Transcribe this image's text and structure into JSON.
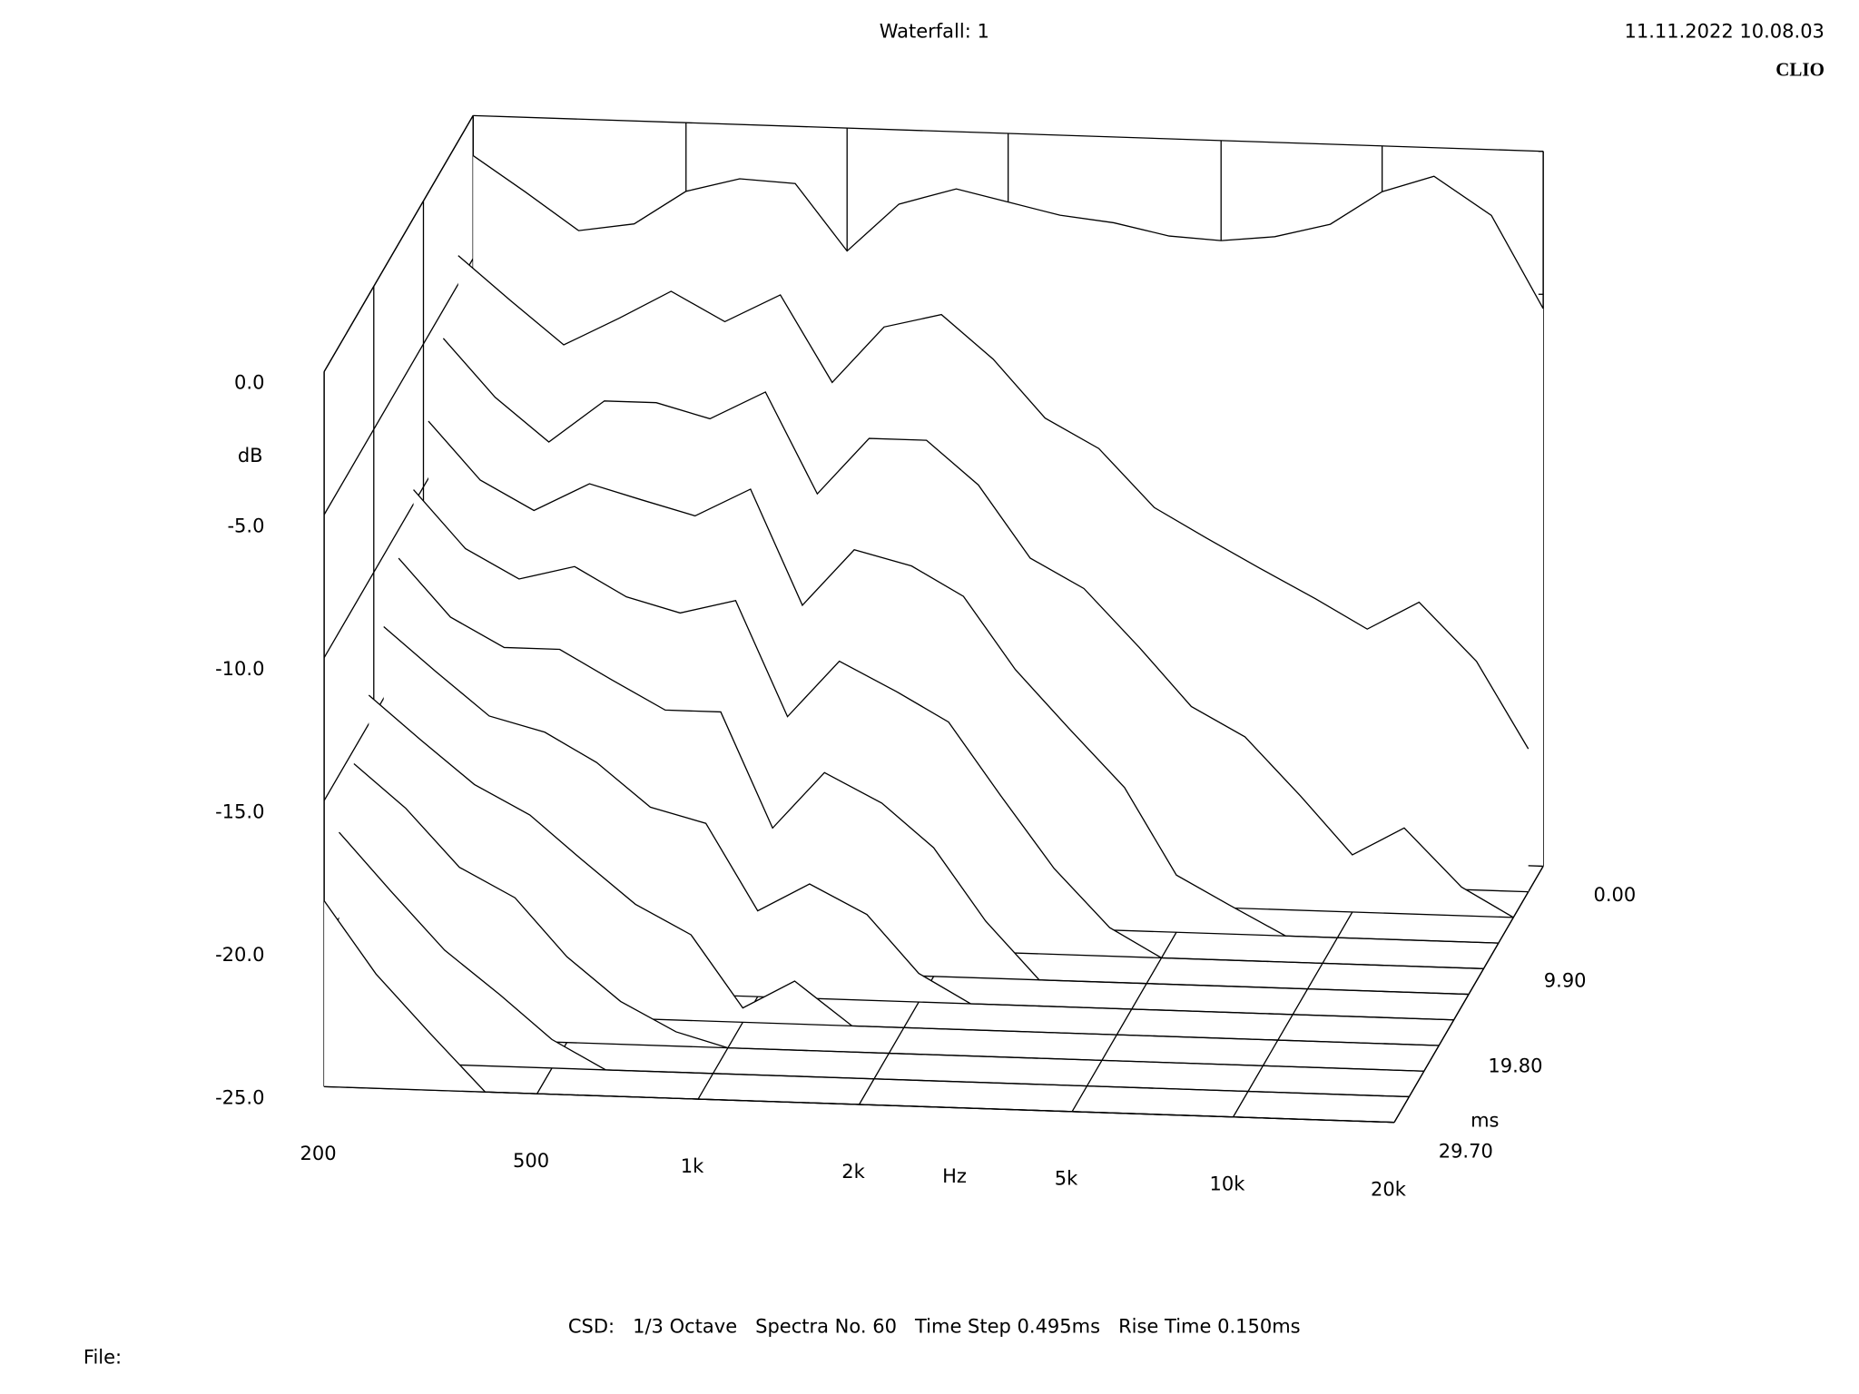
{
  "chart_data": {
    "type": "waterfall",
    "title": "Waterfall: 1",
    "timestamp": "11.11.2022 10.08.03",
    "brand": "CLIO",
    "x_label": "Hz",
    "y_label": "dB",
    "z_label": "ms",
    "footer": "CSD:   1/3 Octave   Spectra No. 60   Time Step 0.495ms   Rise Time 0.150ms",
    "file_label": "File:",
    "log_x": true,
    "color": "#000000",
    "xlim": [
      200,
      20000
    ],
    "xticks": [
      200,
      500,
      {
        "value": 1000,
        "label": "1k"
      },
      {
        "value": 2000,
        "label": "2k"
      },
      {
        "value": 5000,
        "label": "5k"
      },
      {
        "value": 10000,
        "label": "10k"
      },
      {
        "value": 20000,
        "label": "20k"
      }
    ],
    "ylim": [
      -25,
      0
    ],
    "yticks": [
      {
        "value": 0,
        "label": "0.0"
      },
      {
        "value": -5,
        "label": "-5.0"
      },
      {
        "value": -10,
        "label": "-10.0"
      },
      {
        "value": -15,
        "label": "-15.0"
      },
      {
        "value": -20,
        "label": "-20.0"
      },
      {
        "value": -25,
        "label": "-25.0"
      }
    ],
    "zlim": [
      0,
      29.7
    ],
    "zticks": [
      {
        "value": 0,
        "label": "0.00"
      },
      {
        "value": 9.9,
        "label": "9.90"
      },
      {
        "value": 19.8,
        "label": "19.80"
      },
      {
        "value": 29.7,
        "label": "29.70"
      }
    ],
    "x": [
      200,
      250,
      315,
      400,
      500,
      630,
      800,
      1000,
      1250,
      1600,
      2000,
      2500,
      3150,
      4000,
      5000,
      6300,
      8000,
      10000,
      12500,
      16000,
      20000
    ],
    "slices": [
      {
        "time": 0,
        "values": [
          -1.4,
          -2.6,
          -3.9,
          -3.6,
          -2.4,
          -1.9,
          -2.0,
          -4.3,
          -2.6,
          -2.0,
          -2.4,
          -2.8,
          -3.0,
          -3.4,
          -3.5,
          -3.3,
          -2.8,
          -1.6,
          -1.0,
          -2.3,
          -5.5
        ]
      },
      {
        "time": 2.97,
        "values": [
          -4,
          -5.5,
          -7,
          -6,
          -5,
          -6,
          -5,
          -8,
          -6,
          -5.5,
          -7,
          -9,
          -10,
          -12,
          -13,
          -14,
          -15,
          -16,
          -15,
          -17,
          -20
        ]
      },
      {
        "time": 5.94,
        "values": [
          -6,
          -8,
          -9.5,
          -8,
          -8,
          -8.5,
          -7.5,
          -11,
          -9,
          -9,
          -10.5,
          -13,
          -14,
          -16,
          -18,
          -19,
          -21,
          -23,
          -22,
          -24,
          -25
        ]
      },
      {
        "time": 8.91,
        "values": [
          -8,
          -10,
          -11,
          -10,
          -10.5,
          -11,
          -10,
          -14,
          -12,
          -12.5,
          -13.5,
          -16,
          -18,
          -20,
          -23,
          -24,
          -25,
          -25,
          -25,
          -25,
          -25
        ]
      },
      {
        "time": 11.88,
        "values": [
          -9.5,
          -11.5,
          -12.5,
          -12,
          -13,
          -13.5,
          -13,
          -17,
          -15,
          -16,
          -17,
          -19.5,
          -22,
          -24,
          -25,
          -25,
          -25,
          -25,
          -25,
          -25,
          -25
        ]
      },
      {
        "time": 14.85,
        "values": [
          -11,
          -13,
          -14,
          -14,
          -15,
          -16,
          -16,
          -20,
          -18,
          -19,
          -20.5,
          -23,
          -25,
          -25,
          -25,
          -25,
          -25,
          -25,
          -25,
          -25,
          -25
        ]
      },
      {
        "time": 17.82,
        "values": [
          -12.5,
          -14,
          -15.5,
          -16,
          -17,
          -18.5,
          -19,
          -22,
          -21,
          -22,
          -24,
          -25,
          -25,
          -25,
          -25,
          -25,
          -25,
          -25,
          -25,
          -25,
          -25
        ]
      },
      {
        "time": 20.79,
        "values": [
          -14,
          -15.5,
          -17,
          -18,
          -19.5,
          -21,
          -22,
          -24.5,
          -23.5,
          -25,
          -25,
          -25,
          -25,
          -25,
          -25,
          -25,
          -25,
          -25,
          -25,
          -25,
          -25
        ]
      },
      {
        "time": 23.76,
        "values": [
          -15.5,
          -17,
          -19,
          -20,
          -22,
          -23.5,
          -24.5,
          -25,
          -25,
          -25,
          -25,
          -25,
          -25,
          -25,
          -25,
          -25,
          -25,
          -25,
          -25,
          -25,
          -25
        ]
      },
      {
        "time": 26.73,
        "values": [
          -17,
          -19,
          -21,
          -22.5,
          -24,
          -25,
          -25,
          -25,
          -25,
          -25,
          -25,
          -25,
          -25,
          -25,
          -25,
          -25,
          -25,
          -25,
          -25,
          -25,
          -25
        ]
      },
      {
        "time": 29.7,
        "values": [
          -18.5,
          -21,
          -23,
          -25,
          -25,
          -25,
          -25,
          -25,
          -25,
          -25,
          -25,
          -25,
          -25,
          -25,
          -25,
          -25,
          -25,
          -25,
          -25,
          -25,
          -25
        ]
      }
    ]
  }
}
